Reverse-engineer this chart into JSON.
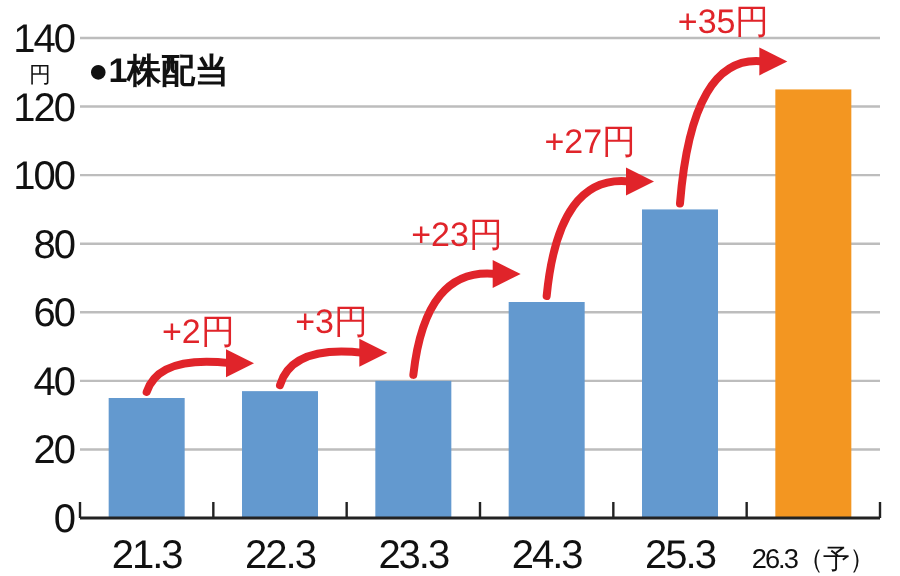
{
  "chart_data": {
    "type": "bar",
    "title": "●1株配当",
    "ylabel": "円",
    "categories": [
      "21.3",
      "22.3",
      "23.3",
      "24.3",
      "25.3",
      "26.3（予）"
    ],
    "values": [
      35,
      37,
      40,
      63,
      90,
      125
    ],
    "colors": [
      "#6399cf",
      "#6399cf",
      "#6399cf",
      "#6399cf",
      "#6399cf",
      "#f39621"
    ],
    "ylim": [
      0,
      140
    ],
    "yticks": [
      0,
      20,
      40,
      60,
      80,
      100,
      120,
      140
    ],
    "grid": "y",
    "annotations": [
      {
        "text": "+2円",
        "x": "22.3",
        "y": 37
      },
      {
        "text": "+3円",
        "x": "23.3",
        "y": 40
      },
      {
        "text": "+23円",
        "x": "24.3",
        "y": 63
      },
      {
        "text": "+27円",
        "x": "25.3",
        "y": 90
      },
      {
        "text": "+35円",
        "x": "26.3（予）",
        "y": 125
      }
    ]
  }
}
